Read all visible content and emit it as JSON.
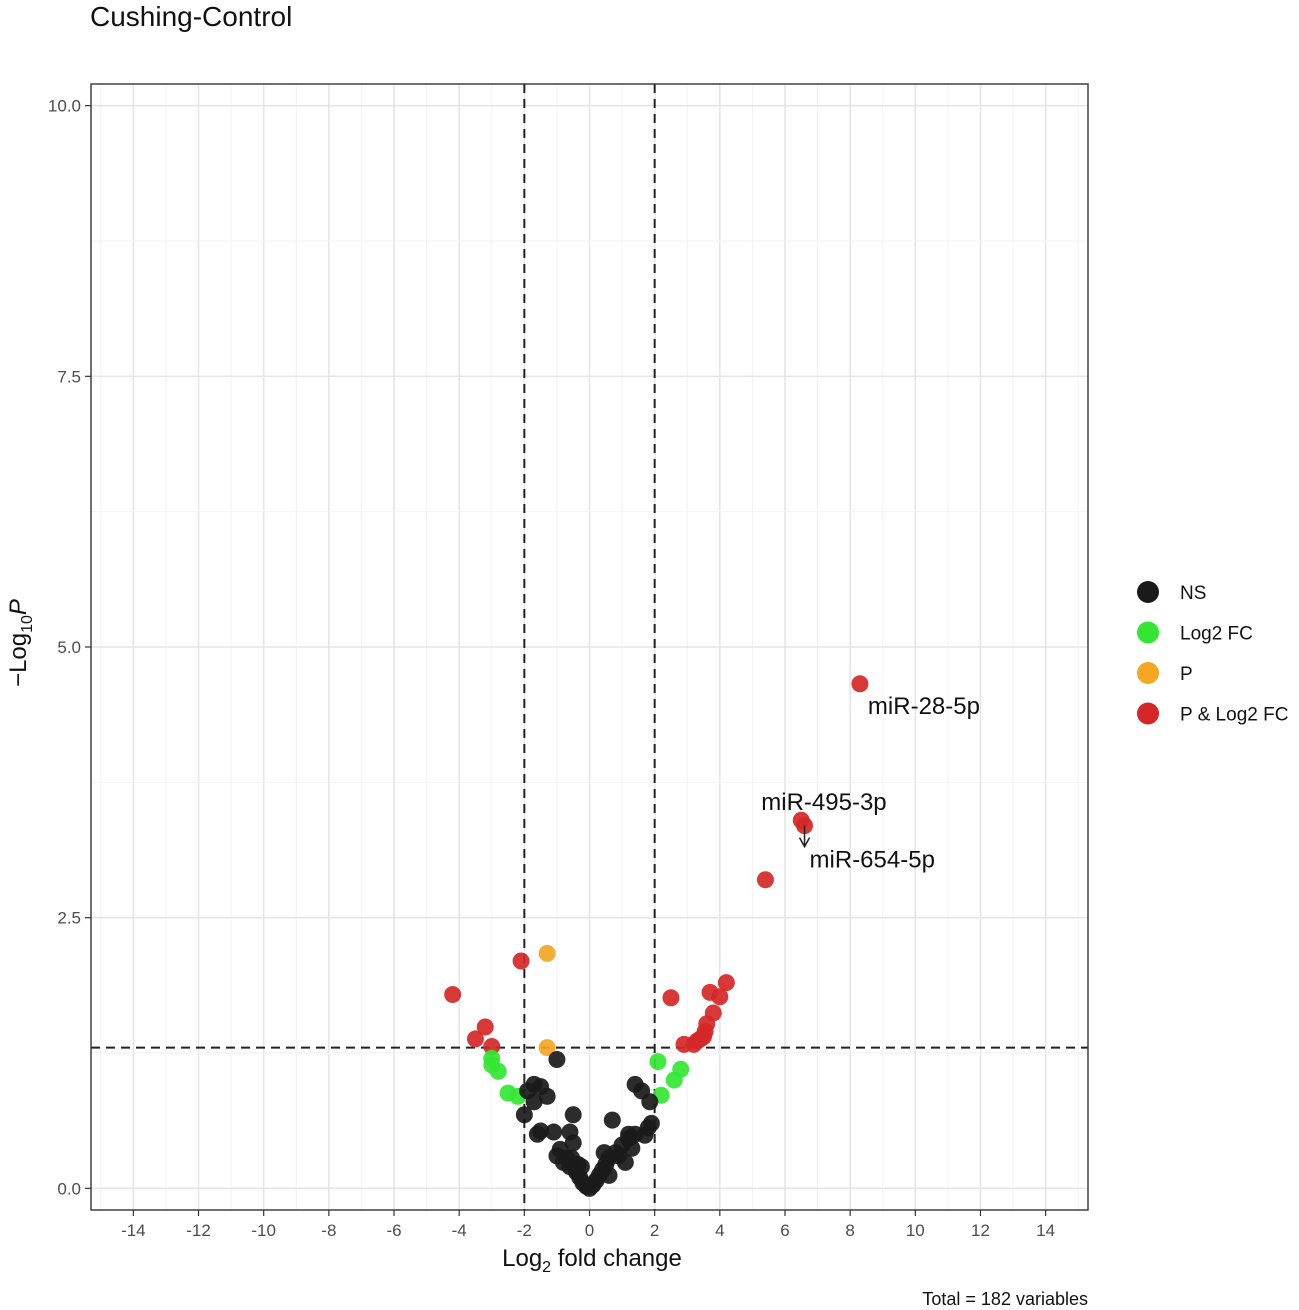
{
  "chart_data": {
    "type": "scatter",
    "title": "Cushing-Control",
    "xlabel": {
      "main": "Log",
      "sub": "2",
      "rest": " fold change"
    },
    "ylabel": {
      "prefix": "−Log",
      "sub": "10",
      "italic": "P"
    },
    "caption": "Total = 182 variables",
    "xlim": [
      -15.3,
      15.3
    ],
    "ylim": [
      -0.2,
      10.2
    ],
    "x_ticks": [
      -14,
      -12,
      -10,
      -8,
      -6,
      -4,
      -2,
      0,
      2,
      4,
      6,
      8,
      10,
      12,
      14
    ],
    "y_ticks": [
      0.0,
      2.5,
      5.0,
      7.5,
      10.0
    ],
    "y_tick_labels": [
      "0.0",
      "2.5",
      "5.0",
      "7.5",
      "10.0"
    ],
    "grid": true,
    "thresholds": {
      "x": [
        -2,
        2
      ],
      "y": 1.3
    },
    "legend": {
      "position": "right",
      "entries": [
        {
          "label": "NS",
          "color": "#1a1a1a"
        },
        {
          "label": "Log2 FC",
          "color": "#33e633"
        },
        {
          "label": "P",
          "color": "#f5a623"
        },
        {
          "label": "P & Log2 FC",
          "color": "#d62728"
        }
      ]
    },
    "series": [
      {
        "name": "P & Log2 FC",
        "color": "#d62728",
        "points": [
          [
            8.3,
            4.66
          ],
          [
            6.5,
            3.4
          ],
          [
            6.6,
            3.35
          ],
          [
            5.4,
            2.85
          ],
          [
            -2.1,
            2.1
          ],
          [
            -4.2,
            1.79
          ],
          [
            4.2,
            1.9
          ],
          [
            3.7,
            1.81
          ],
          [
            4.0,
            1.77
          ],
          [
            2.5,
            1.76
          ],
          [
            3.8,
            1.62
          ],
          [
            3.6,
            1.52
          ],
          [
            3.55,
            1.45
          ],
          [
            3.5,
            1.4
          ],
          [
            3.2,
            1.33
          ],
          [
            2.9,
            1.33
          ],
          [
            3.3,
            1.36
          ],
          [
            3.4,
            1.38
          ],
          [
            -3.2,
            1.49
          ],
          [
            -3.5,
            1.38
          ],
          [
            -3.0,
            1.31
          ]
        ]
      },
      {
        "name": "P",
        "color": "#f5a623",
        "points": [
          [
            -1.3,
            2.17
          ],
          [
            -1.3,
            1.3
          ]
        ]
      },
      {
        "name": "Log2 FC",
        "color": "#33e633",
        "points": [
          [
            -3.0,
            1.2
          ],
          [
            -3.0,
            1.14
          ],
          [
            -2.8,
            1.08
          ],
          [
            -2.5,
            0.88
          ],
          [
            -2.2,
            0.85
          ],
          [
            2.1,
            1.17
          ],
          [
            2.8,
            1.1
          ],
          [
            2.6,
            1.0
          ],
          [
            2.2,
            0.86
          ]
        ]
      },
      {
        "name": "NS",
        "color": "#1a1a1a",
        "points": [
          [
            -1.0,
            1.19
          ],
          [
            -1.7,
            0.96
          ],
          [
            -1.5,
            0.94
          ],
          [
            -1.9,
            0.9
          ],
          [
            -1.3,
            0.85
          ],
          [
            -1.7,
            0.8
          ],
          [
            -2.0,
            0.68
          ],
          [
            -0.5,
            0.68
          ],
          [
            -1.5,
            0.53
          ],
          [
            -1.6,
            0.5
          ],
          [
            -1.1,
            0.52
          ],
          [
            -0.6,
            0.52
          ],
          [
            -0.5,
            0.42
          ],
          [
            -0.9,
            0.36
          ],
          [
            -1.0,
            0.3
          ],
          [
            -0.8,
            0.24
          ],
          [
            -0.6,
            0.2
          ],
          [
            -0.7,
            0.28
          ],
          [
            -0.4,
            0.15
          ],
          [
            -0.3,
            0.1
          ],
          [
            -0.2,
            0.05
          ],
          [
            -0.1,
            0.02
          ],
          [
            0.0,
            0.0
          ],
          [
            0.1,
            0.03
          ],
          [
            0.2,
            0.07
          ],
          [
            0.3,
            0.12
          ],
          [
            0.4,
            0.17
          ],
          [
            0.5,
            0.22
          ],
          [
            0.6,
            0.28
          ],
          [
            0.8,
            0.33
          ],
          [
            1.0,
            0.4
          ],
          [
            1.2,
            0.46
          ],
          [
            1.4,
            0.5
          ],
          [
            1.8,
            0.56
          ],
          [
            1.9,
            0.6
          ],
          [
            0.7,
            0.63
          ],
          [
            1.4,
            0.96
          ],
          [
            1.6,
            0.9
          ],
          [
            1.85,
            0.8
          ],
          [
            1.2,
            0.5
          ],
          [
            0.9,
            0.3
          ],
          [
            0.6,
            0.12
          ],
          [
            -0.35,
            0.22
          ],
          [
            -0.55,
            0.28
          ],
          [
            -0.25,
            0.2
          ],
          [
            0.45,
            0.33
          ],
          [
            1.1,
            0.24
          ],
          [
            1.3,
            0.37
          ],
          [
            1.7,
            0.49
          ]
        ]
      }
    ],
    "annotations": [
      {
        "text": "miR-28-5p",
        "x": 8.3,
        "y": 4.66
      },
      {
        "text": "miR-495-3p",
        "x": 6.5,
        "y": 3.4
      },
      {
        "text": "miR-654-5p",
        "x": 6.6,
        "y": 3.35
      }
    ]
  }
}
